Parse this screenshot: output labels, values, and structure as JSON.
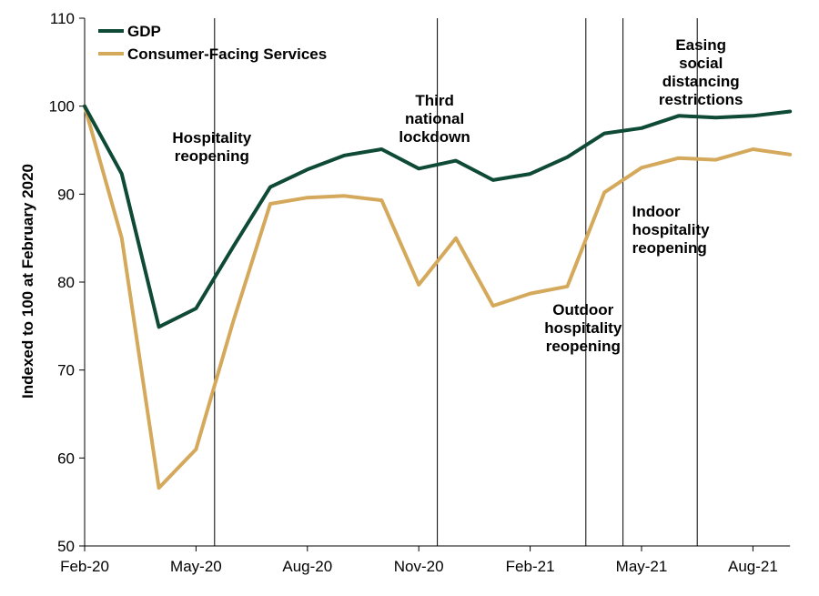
{
  "chart_data": {
    "type": "line",
    "ylabel": "Indexed to 100 at February 2020",
    "ylim": [
      50,
      110
    ],
    "yticks": [
      50,
      60,
      70,
      80,
      90,
      100,
      110
    ],
    "x": [
      "2020-02",
      "2020-03",
      "2020-04",
      "2020-05",
      "2020-06",
      "2020-07",
      "2020-08",
      "2020-09",
      "2020-10",
      "2020-11",
      "2020-12",
      "2021-01",
      "2021-02",
      "2021-03",
      "2021-04",
      "2021-05",
      "2021-06",
      "2021-07",
      "2021-08",
      "2021-09"
    ],
    "xticks": [
      {
        "x": "2020-02",
        "label": "Feb-20"
      },
      {
        "x": "2020-05",
        "label": "May-20"
      },
      {
        "x": "2020-08",
        "label": "Aug-20"
      },
      {
        "x": "2020-11",
        "label": "Nov-20"
      },
      {
        "x": "2021-02",
        "label": "Feb-21"
      },
      {
        "x": "2021-05",
        "label": "May-21"
      },
      {
        "x": "2021-08",
        "label": "Aug-21"
      }
    ],
    "grid": false,
    "legend": "top-left",
    "series": [
      {
        "name": "GDP",
        "color": "#0e4a35",
        "values": [
          100,
          92.3,
          74.9,
          77.0,
          84.0,
          90.8,
          92.8,
          94.4,
          95.1,
          92.9,
          93.8,
          91.6,
          92.3,
          94.2,
          96.9,
          97.5,
          98.9,
          98.7,
          98.9,
          99.4
        ]
      },
      {
        "name": "Consumer-Facing Services",
        "color": "#d5a95b",
        "values": [
          100,
          85.0,
          56.6,
          61.0,
          75.5,
          88.9,
          89.6,
          89.8,
          89.3,
          79.7,
          85.0,
          77.3,
          78.7,
          79.5,
          90.2,
          93.0,
          94.1,
          93.9,
          95.1,
          94.5
        ]
      }
    ],
    "events": [
      {
        "x": "2020-06",
        "label_lines": [
          "Hospitality",
          "reopening"
        ]
      },
      {
        "x": "2020-12",
        "label_lines": [
          "Third",
          "national",
          "lockdown"
        ]
      },
      {
        "x": "2021-04",
        "label_lines": [
          "Outdoor",
          "hospitality",
          "reopening"
        ]
      },
      {
        "x": "2021-05",
        "label_lines": [
          "Indoor",
          "hospitality",
          "reopening"
        ]
      },
      {
        "x": "2021-07",
        "label_lines": [
          "Easing",
          "social",
          "distancing",
          "restrictions"
        ]
      }
    ]
  }
}
